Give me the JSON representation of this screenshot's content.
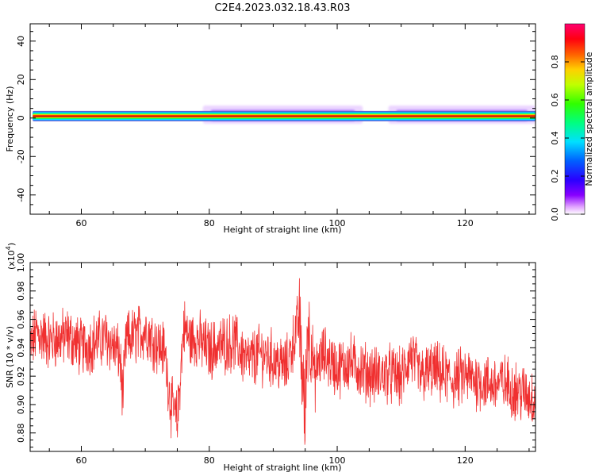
{
  "figure": {
    "title": "C2E4.2023.032.18.43.R03"
  },
  "colors": {
    "snr_line": "#f03030",
    "axis": "#000000"
  },
  "chart_data": [
    {
      "type": "heatmap",
      "xlabel": "Height of straight line (km)",
      "ylabel": "Frequency (Hz)",
      "xlim": [
        52,
        131
      ],
      "ylim": [
        -50,
        49
      ],
      "xticks": [
        60,
        80,
        100,
        120
      ],
      "yticks": [
        -40,
        -20,
        0,
        20,
        40
      ],
      "colorbar": {
        "label": "Normalized spectral amplitude",
        "range": [
          0,
          1
        ],
        "ticks": [
          0.0,
          0.2,
          0.4,
          0.6,
          0.8
        ],
        "colormap": "gist_rainbow"
      },
      "band": {
        "frequency_center_hz": 1,
        "core_halfwidth_hz": 1.5,
        "outer_halfwidth_hz": 2.5,
        "spread_regions": [
          {
            "x": [
              79,
              104
            ],
            "amplitude": 0.15
          },
          {
            "x": [
              108,
              131
            ],
            "amplitude": 0.12
          }
        ]
      }
    },
    {
      "type": "line",
      "xlabel": "Height of straight line (km)",
      "ylabel": "SNR (10 * v/v)",
      "y_multiplier": "(x10",
      "y_multiplier_exp": "4",
      "y_multiplier_close": ")",
      "xlim": [
        52,
        131
      ],
      "ylim": [
        0.867,
        1.0
      ],
      "xticks": [
        60,
        80,
        100,
        120
      ],
      "yticks": [
        0.88,
        0.9,
        0.92,
        0.94,
        0.96,
        0.98,
        1.0
      ],
      "ytick_labels": [
        "0.88",
        "0.90",
        "0.92",
        "0.94",
        "0.96",
        "0.98",
        "1.00"
      ],
      "series": [
        {
          "anchors_x": [
            52,
            53,
            55,
            58,
            60,
            62,
            64,
            66,
            66.5,
            67,
            69,
            70,
            72,
            73,
            74,
            75,
            76,
            77,
            78,
            80,
            82,
            84,
            86,
            88,
            90,
            92,
            93,
            94,
            94.5,
            95,
            95.3,
            96,
            96.5,
            97,
            98,
            100,
            102,
            104,
            106,
            108,
            110,
            111.5,
            113,
            115,
            118,
            120,
            122,
            124,
            126,
            128,
            130,
            131
          ],
          "anchors_y": [
            0.94,
            0.951,
            0.945,
            0.948,
            0.94,
            0.944,
            0.947,
            0.935,
            0.905,
            0.945,
            0.95,
            0.953,
            0.942,
            0.938,
            0.9,
            0.888,
            0.955,
            0.945,
            0.947,
            0.938,
            0.942,
            0.944,
            0.93,
            0.936,
            0.932,
            0.926,
            0.942,
            0.96,
            0.93,
            0.885,
            0.955,
            0.945,
            0.915,
            0.93,
            0.935,
            0.925,
            0.93,
            0.924,
            0.92,
            0.922,
            0.918,
            0.935,
            0.92,
            0.924,
            0.917,
            0.92,
            0.917,
            0.914,
            0.915,
            0.91,
            0.906,
            0.904
          ],
          "noise_amplitude": 0.022,
          "samples": 1600
        }
      ]
    }
  ]
}
